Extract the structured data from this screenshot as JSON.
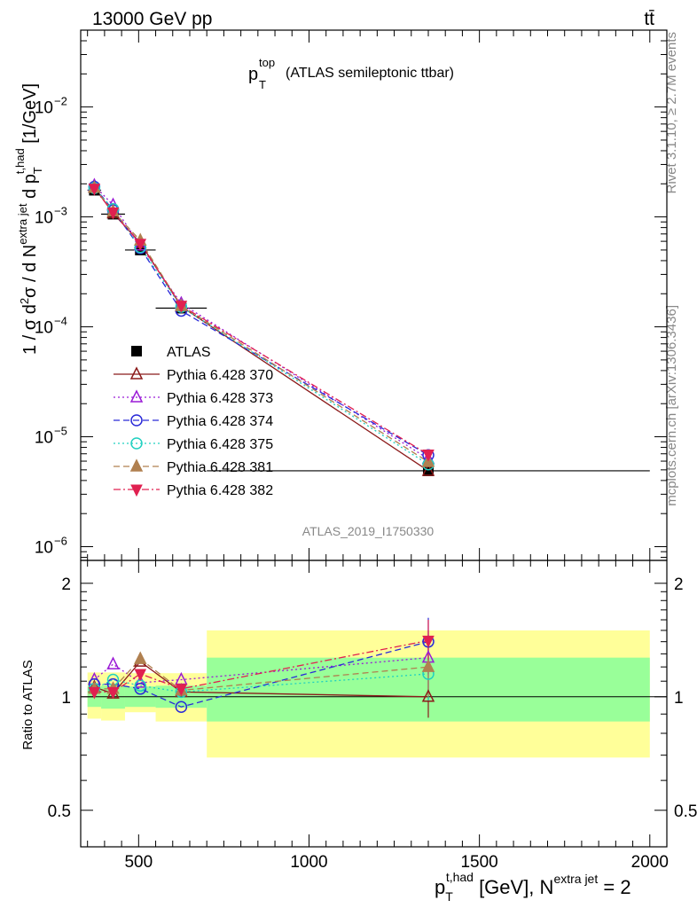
{
  "header": {
    "left": "13000 GeV pp",
    "right": "tt̄",
    "plot_title_main": "p",
    "plot_title_sub": "T",
    "plot_title_sup": "top",
    "plot_title_rest": "(ATLAS semileptonic ttbar)",
    "analysis_id": "ATLAS_2019_I1750330"
  },
  "side_labels": {
    "rivet": "Rivet 3.1.10, ≥ 2.7M events",
    "mcplots": "mcplots.cern.ch [arXiv:1306.3436]"
  },
  "axes": {
    "ylabel_main": "1 / σ d²σ / d N^extra jet d p_T^t,had [1/GeV]",
    "ylabel_ratio": "Ratio to ATLAS",
    "xlabel": "p_T^t,had [GeV], N^extra jet = 2",
    "x_tick_labels": [
      "500",
      "1000",
      "1500",
      "2000"
    ],
    "main_y_tick_labels": [
      {
        "base": "10",
        "exp": "−2"
      },
      {
        "base": "10",
        "exp": "−3"
      },
      {
        "base": "10",
        "exp": "−4"
      },
      {
        "base": "10",
        "exp": "−5"
      },
      {
        "base": "10",
        "exp": "−6"
      }
    ],
    "ratio_y_tick_labels": [
      "2",
      "1",
      "0.5"
    ]
  },
  "chart_data": [
    {
      "type": "line",
      "panel": "main",
      "x_scale": "linear",
      "y_scale": "log",
      "xlim": [
        330,
        2050
      ],
      "ylim": [
        7.5e-07,
        0.05
      ],
      "legend_placement": "middle-left",
      "x": [
        370,
        425,
        505,
        625,
        1350
      ],
      "x_err": [
        [
          350,
          390
        ],
        [
          390,
          460
        ],
        [
          460,
          550
        ],
        [
          550,
          700
        ],
        [
          700,
          2000
        ]
      ],
      "series": [
        {
          "name": "ATLAS",
          "color": "#000000",
          "marker": "filled-square",
          "line": "none",
          "values": [
            0.00175,
            0.00106,
            0.0005,
            0.000148,
            4.9e-06
          ]
        },
        {
          "name": "Pythia 6.428 370",
          "color": "#8b1a1a",
          "marker": "open-triangle-up",
          "line": "solid",
          "values": [
            0.00186,
            0.00108,
            0.00058,
            0.000153,
            4.9e-06
          ]
        },
        {
          "name": "Pythia 6.428 373",
          "color": "#9a1ad6",
          "marker": "open-triangle-up",
          "line": "dotted",
          "values": [
            0.00193,
            0.00128,
            0.00055,
            0.000163,
            6.3e-06
          ]
        },
        {
          "name": "Pythia 6.428 374",
          "color": "#2a2ad8",
          "marker": "open-circle",
          "line": "dashed",
          "values": [
            0.00188,
            0.00115,
            0.00052,
            0.00014,
            6.8e-06
          ]
        },
        {
          "name": "Pythia 6.428 375",
          "color": "#20d0c0",
          "marker": "open-circle",
          "line": "dotted",
          "values": [
            0.00183,
            0.00118,
            0.00053,
            0.000152,
            5.6e-06
          ]
        },
        {
          "name": "Pythia 6.428 381",
          "color": "#b08050",
          "marker": "filled-triangle-up",
          "line": "dashed",
          "values": [
            0.00184,
            0.00112,
            0.00061,
            0.000155,
            5.9e-06
          ]
        },
        {
          "name": "Pythia 6.428 382",
          "color": "#e02050",
          "marker": "filled-triangle-down",
          "line": "dashdot",
          "values": [
            0.00181,
            0.0011,
            0.00057,
            0.000156,
            6.9e-06
          ]
        }
      ]
    },
    {
      "type": "line",
      "panel": "ratio",
      "x_scale": "linear",
      "y_scale": "log",
      "xlim": [
        330,
        2050
      ],
      "ylim": [
        0.4,
        2.3
      ],
      "reference_line": 1,
      "x": [
        370,
        425,
        505,
        625,
        1350
      ],
      "uncertainty_bands": [
        {
          "name": "total",
          "color": "#ffff99",
          "x_low": [
            350,
            390,
            460,
            550,
            700
          ],
          "x_high": [
            390,
            460,
            550,
            700,
            2000
          ],
          "low": [
            0.875,
            0.865,
            0.91,
            0.86,
            0.69
          ],
          "high": [
            1.16,
            1.16,
            1.155,
            1.155,
            1.5
          ]
        },
        {
          "name": "stat",
          "color": "#99ff99",
          "x_low": [
            350,
            390,
            460,
            550,
            700
          ],
          "x_high": [
            390,
            460,
            550,
            700,
            2000
          ],
          "low": [
            0.94,
            0.93,
            0.94,
            0.935,
            0.86
          ],
          "high": [
            1.065,
            1.07,
            1.065,
            1.07,
            1.27
          ]
        }
      ],
      "series": [
        {
          "name": "Pythia 6.428 370",
          "color": "#8b1a1a",
          "marker": "open-triangle-up",
          "line": "solid",
          "values": [
            1.06,
            1.02,
            1.24,
            1.03,
            1.0
          ],
          "err_last": [
            0.88,
            1.12
          ]
        },
        {
          "name": "Pythia 6.428 373",
          "color": "#9a1ad6",
          "marker": "open-triangle-up",
          "line": "dotted",
          "values": [
            1.11,
            1.22,
            1.09,
            1.11,
            1.27
          ],
          "err_last": [
            1.05,
            1.5
          ]
        },
        {
          "name": "Pythia 6.428 374",
          "color": "#2a2ad8",
          "marker": "open-circle",
          "line": "dashed",
          "values": [
            1.08,
            1.08,
            1.05,
            0.94,
            1.4
          ],
          "err_last": [
            1.15,
            1.62
          ]
        },
        {
          "name": "Pythia 6.428 375",
          "color": "#20d0c0",
          "marker": "open-circle",
          "line": "dotted",
          "values": [
            1.05,
            1.11,
            1.07,
            1.03,
            1.15
          ],
          "err_last": [
            0.97,
            1.33
          ]
        },
        {
          "name": "Pythia 6.428 381",
          "color": "#b08050",
          "marker": "filled-triangle-up",
          "line": "dashed",
          "values": [
            1.05,
            1.05,
            1.26,
            1.04,
            1.2
          ],
          "err_last": [
            1.0,
            1.4
          ]
        },
        {
          "name": "Pythia 6.428 382",
          "color": "#e02050",
          "marker": "filled-triangle-down",
          "line": "dashdot",
          "values": [
            1.03,
            1.03,
            1.15,
            1.05,
            1.41
          ],
          "err_last": [
            1.2,
            1.6
          ]
        }
      ]
    }
  ]
}
